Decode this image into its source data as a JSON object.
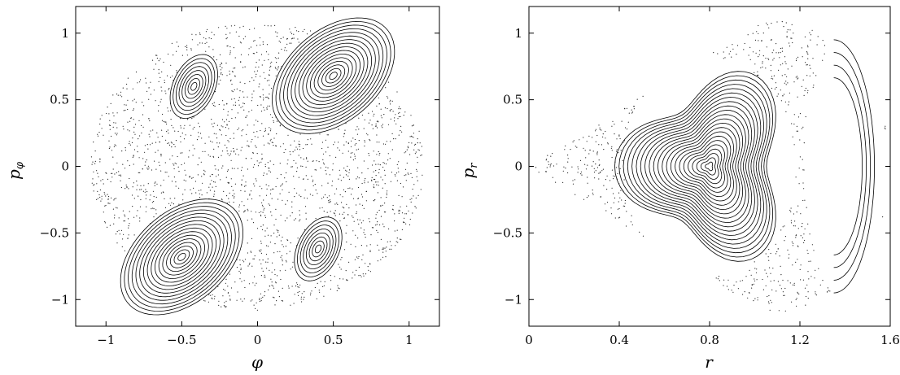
{
  "chart_data": [
    {
      "type": "scatter",
      "title": "",
      "xlabel": "φ",
      "ylabel": "p",
      "ylabel_sub": "φ",
      "xlim": [
        -1.2,
        1.2
      ],
      "ylim": [
        -1.2,
        1.2
      ],
      "xticks": [
        "−1",
        "−0.5",
        "0",
        "0.5",
        "1"
      ],
      "xtick_values": [
        -1,
        -0.5,
        0,
        0.5,
        1
      ],
      "yticks": [
        "1",
        "0.5",
        "0",
        "−0.5",
        "−1"
      ],
      "ytick_values": [
        1,
        0.5,
        0,
        -0.5,
        -1
      ],
      "grid": false,
      "boundary": {
        "rx": 1.1,
        "ry": 1.08
      },
      "islands": [
        {
          "cx": 0.5,
          "cy": 0.68,
          "rx": 0.32,
          "ry": 0.5,
          "tilt": -40
        },
        {
          "cx": -0.5,
          "cy": -0.68,
          "rx": 0.32,
          "ry": 0.5,
          "tilt": -40
        },
        {
          "cx": -0.42,
          "cy": 0.6,
          "rx": 0.14,
          "ry": 0.25,
          "tilt": -20
        },
        {
          "cx": 0.4,
          "cy": -0.62,
          "rx": 0.14,
          "ry": 0.25,
          "tilt": -20
        }
      ]
    },
    {
      "type": "scatter",
      "title": "",
      "xlabel": "r",
      "ylabel": "p",
      "ylabel_sub": "r",
      "xlim": [
        0,
        1.6
      ],
      "ylim": [
        -1.2,
        1.2
      ],
      "xticks": [
        "0",
        "0.4",
        "0.8",
        "1.2",
        "1.6"
      ],
      "xtick_values": [
        0,
        0.4,
        0.8,
        1.2,
        1.6
      ],
      "yticks": [
        "1",
        "0.5",
        "0",
        "−0.5",
        "−1"
      ],
      "ytick_values": [
        1,
        0.5,
        0,
        -0.5,
        -1
      ],
      "grid": false,
      "center": [
        0.8,
        0.0
      ],
      "outer_boundary_r": [
        0.0,
        1.58
      ],
      "islands": [
        {
          "cx": 0.8,
          "cy": 0.0,
          "rx": 0.38,
          "ry": 0.82
        },
        {
          "cx": 1.4,
          "cy": 0.0,
          "rx": 0.18,
          "ry": 0.95
        }
      ]
    }
  ]
}
